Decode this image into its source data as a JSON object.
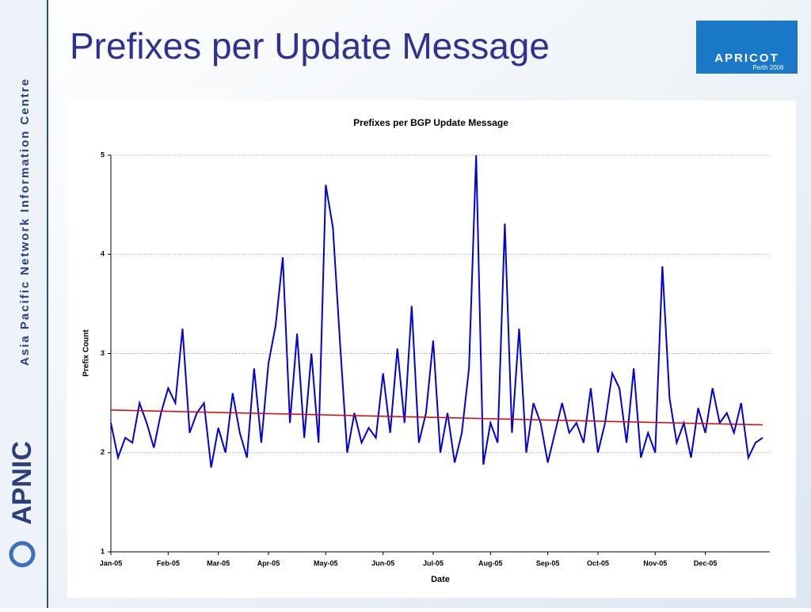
{
  "slide": {
    "title": "Prefixes per Update Message",
    "sidebar": "Asia Pacific Network Information Centre",
    "logo": "APNIC",
    "event_logo": {
      "name": "APRICOT",
      "sub": "Perth 2006"
    }
  },
  "chart_data": {
    "type": "line",
    "title": "Prefixes per BGP Update Message",
    "x_label": "Date",
    "y_label": "Prefix Count",
    "categories": [
      "Jan-05",
      null,
      null,
      null,
      null,
      null,
      null,
      null,
      "Feb-05",
      null,
      null,
      null,
      null,
      null,
      null,
      "Mar-05",
      null,
      null,
      null,
      null,
      null,
      null,
      "Apr-05",
      null,
      null,
      null,
      null,
      null,
      null,
      null,
      "May-05",
      null,
      null,
      null,
      null,
      null,
      null,
      null,
      "Jun-05",
      null,
      null,
      null,
      null,
      null,
      null,
      "Jul-05",
      null,
      null,
      null,
      null,
      null,
      null,
      null,
      "Aug-05",
      null,
      null,
      null,
      null,
      null,
      null,
      null,
      "Sep-05",
      null,
      null,
      null,
      null,
      null,
      null,
      "Oct-05",
      null,
      null,
      null,
      null,
      null,
      null,
      null,
      "Nov-05",
      null,
      null,
      null,
      null,
      null,
      null,
      "Dec-05",
      null,
      null,
      null,
      null,
      null,
      null,
      null,
      null
    ],
    "series": [
      {
        "color": "#0000dd",
        "values": [
          2.3,
          1.95,
          2.15,
          2.1,
          2.5,
          2.3,
          2.05,
          2.4,
          2.65,
          2.5,
          3.25,
          2.2,
          2.4,
          2.5,
          1.85,
          2.25,
          2.0,
          2.6,
          2.2,
          1.95,
          2.85,
          2.1,
          2.9,
          3.28,
          3.97,
          2.3,
          3.2,
          2.15,
          3.0,
          2.1,
          4.7,
          4.27,
          3.1,
          2.0,
          2.4,
          2.1,
          2.25,
          2.15,
          2.8,
          2.2,
          3.05,
          2.3,
          3.48,
          2.1,
          2.4,
          3.13,
          2.0,
          2.4,
          1.9,
          2.2,
          2.85,
          5.0,
          1.88,
          2.3,
          2.1,
          4.31,
          2.2,
          3.25,
          2.0,
          2.5,
          2.3,
          1.9,
          2.2,
          2.5,
          2.2,
          2.3,
          2.1,
          2.65,
          2.0,
          2.3,
          2.8,
          2.65,
          2.1,
          2.85,
          1.95,
          2.2,
          2.0,
          3.88,
          2.55,
          2.1,
          2.3,
          1.95,
          2.45,
          2.2,
          2.65,
          2.3,
          2.4,
          2.2,
          2.5,
          1.95,
          2.1,
          2.15
        ]
      }
    ],
    "trend": {
      "color": "#dd0000",
      "values": [
        2.43,
        2.28
      ]
    },
    "ylim": [
      1,
      5
    ],
    "yticks": [
      1,
      2,
      3,
      4,
      5
    ],
    "grid": true
  }
}
